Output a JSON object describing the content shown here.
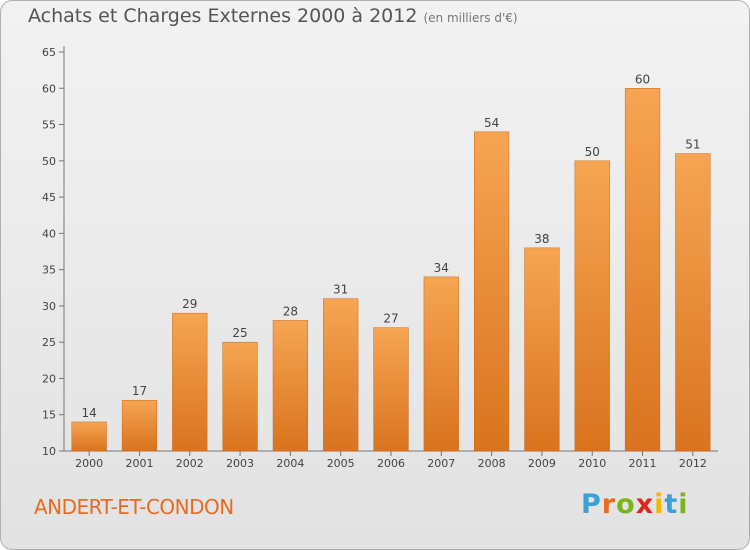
{
  "title": "Achats et Charges Externes 2000 à 2012",
  "unit_note": "(en milliers d'€)",
  "commune": "ANDERT-ET-CONDON",
  "brand": {
    "letters": [
      "P",
      "r",
      "o",
      "x",
      "i",
      "t",
      "i"
    ],
    "colors": [
      "#3aa0d8",
      "#e86c1f",
      "#7ab51d",
      "#e2231a",
      "#f5b800",
      "#3aa0d8",
      "#7ab51d"
    ]
  },
  "colors": {
    "bar_top": "#f6a552",
    "bar_bottom": "#d9731f",
    "title": "#555555",
    "commune": "#e86c1f"
  },
  "chart_data": {
    "type": "bar",
    "categories": [
      "2000",
      "2001",
      "2002",
      "2003",
      "2004",
      "2005",
      "2006",
      "2007",
      "2008",
      "2009",
      "2010",
      "2011",
      "2012"
    ],
    "values": [
      14,
      17,
      29,
      25,
      28,
      31,
      27,
      34,
      54,
      38,
      50,
      60,
      51
    ],
    "ylim": [
      10,
      65
    ],
    "yticks": [
      10,
      15,
      20,
      25,
      30,
      35,
      40,
      45,
      50,
      55,
      60,
      65
    ],
    "grid": false,
    "data_labels": true
  }
}
